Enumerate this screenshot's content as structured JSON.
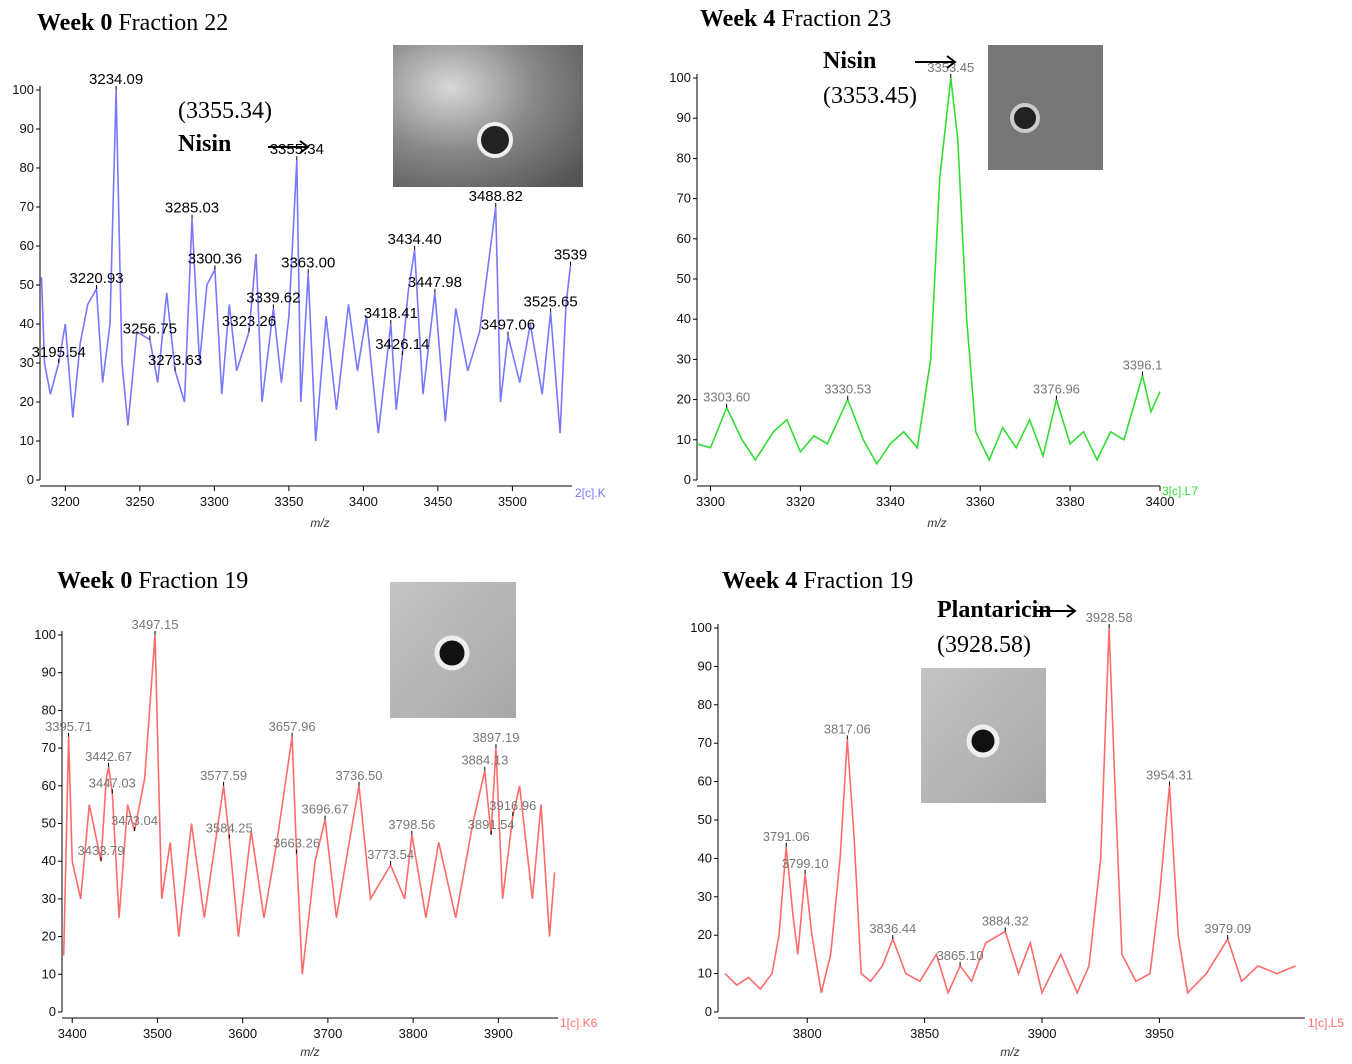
{
  "chart_data": [
    {
      "type": "line",
      "title_bold": "Week 0",
      "title": "Fraction 22",
      "x_label": "m/z",
      "channel_label": "2[c].K",
      "color": "#7878ff",
      "annotation_name": "Nisin",
      "annotation_value": "(3355.34)",
      "xlim": [
        3183,
        3540
      ],
      "xticks": [
        3200,
        3250,
        3300,
        3350,
        3400,
        3450,
        3500
      ],
      "ylim": [
        0,
        100
      ],
      "yticks": [
        0,
        10,
        20,
        30,
        40,
        50,
        60,
        70,
        80,
        90,
        100
      ],
      "x": [
        3184,
        3186,
        3190,
        3195.54,
        3200,
        3205,
        3210,
        3215,
        3220.93,
        3225,
        3230,
        3234.09,
        3238,
        3242,
        3248,
        3256.75,
        3262,
        3268,
        3273.63,
        3280,
        3285.03,
        3290,
        3295,
        3300.36,
        3305,
        3310,
        3315,
        3323.26,
        3328,
        3332,
        3339.62,
        3345,
        3350,
        3355.34,
        3358,
        3363,
        3368,
        3375,
        3382,
        3390,
        3396,
        3402,
        3410,
        3418.41,
        3422,
        3426.14,
        3430,
        3434.4,
        3440,
        3447.98,
        3455,
        3462,
        3470,
        3478,
        3488.82,
        3492,
        3497.06,
        3505,
        3512,
        3520,
        3525.65,
        3532,
        3536,
        3539
      ],
      "values": [
        52,
        30,
        22,
        30,
        40,
        16,
        35,
        45,
        49,
        25,
        40,
        100,
        30,
        14,
        38,
        36,
        25,
        48,
        28,
        20,
        67,
        30,
        50,
        54,
        22,
        45,
        28,
        38,
        58,
        20,
        44,
        25,
        42,
        82,
        20,
        53,
        10,
        42,
        18,
        45,
        28,
        42,
        12,
        40,
        18,
        32,
        48,
        59,
        22,
        48,
        15,
        44,
        28,
        38,
        70,
        20,
        37,
        25,
        40,
        22,
        43,
        12,
        45,
        55
      ],
      "peak_x": [
        3234.09,
        3220.93,
        3195.54,
        3256.75,
        3273.63,
        3285.03,
        3300.36,
        3323.26,
        3339.62,
        3355.34,
        3363.0,
        3418.41,
        3426.14,
        3434.4,
        3447.98,
        3488.82,
        3497.06,
        3525.65,
        3539
      ],
      "peak_y": [
        100,
        49,
        30,
        36,
        28,
        67,
        54,
        38,
        44,
        82,
        53,
        40,
        32,
        59,
        48,
        70,
        37,
        43,
        55
      ],
      "peak_labels": [
        "3234.09",
        "3220.93",
        "3195.54",
        "3256.75",
        "3273.63",
        "3285.03",
        "3300.36",
        "3323.26",
        "3339.62",
        "3355.34",
        "3363.00",
        "3418.41",
        "3426.14",
        "3434.40",
        "3447.98",
        "3488.82",
        "3497.06",
        "3525.65",
        "3539"
      ]
    },
    {
      "type": "line",
      "title_bold": "Week 4",
      "title": "Fraction 23",
      "x_label": "m/z",
      "channel_label": "3[c].L7",
      "color": "#33dd33",
      "annotation_name": "Nisin",
      "annotation_value": "(3353.45)",
      "xlim": [
        3297,
        3400
      ],
      "xticks": [
        3300,
        3320,
        3340,
        3360,
        3380,
        3400
      ],
      "ylim": [
        0,
        100
      ],
      "yticks": [
        0,
        10,
        20,
        30,
        40,
        50,
        60,
        70,
        80,
        90,
        100
      ],
      "x": [
        3297,
        3300,
        3303.6,
        3307,
        3310,
        3314,
        3317,
        3320,
        3323,
        3326,
        3330.53,
        3334,
        3337,
        3340,
        3343,
        3346,
        3349,
        3351,
        3353.45,
        3355,
        3357,
        3359,
        3362,
        3365,
        3368,
        3371,
        3374,
        3376.96,
        3380,
        3383,
        3386,
        3389,
        3392,
        3396.1,
        3398,
        3400
      ],
      "values": [
        9,
        8,
        18,
        10,
        5,
        12,
        15,
        7,
        11,
        9,
        20,
        10,
        4,
        9,
        12,
        8,
        30,
        75,
        100,
        85,
        40,
        12,
        5,
        13,
        8,
        15,
        6,
        20,
        9,
        12,
        5,
        12,
        10,
        26,
        17,
        22
      ],
      "peak_x": [
        3303.6,
        3330.53,
        3353.45,
        3376.96,
        3396.1
      ],
      "peak_y": [
        18,
        20,
        100,
        20,
        26
      ],
      "peak_labels": [
        "3303.60",
        "3330.53",
        "3353.45",
        "3376.96",
        "3396.1"
      ]
    },
    {
      "type": "line",
      "title_bold": "Week 0",
      "title": "Fraction 19",
      "x_label": "m/z",
      "channel_label": "1[c].K6",
      "color": "#ff6b6b",
      "xlim": [
        3388,
        3970
      ],
      "xticks": [
        3400,
        3500,
        3600,
        3700,
        3800,
        3900
      ],
      "ylim": [
        0,
        100
      ],
      "yticks": [
        0,
        10,
        20,
        30,
        40,
        50,
        60,
        70,
        80,
        90,
        100
      ],
      "x": [
        3390,
        3395.71,
        3400,
        3410,
        3420,
        3433.79,
        3440,
        3442.67,
        3447.03,
        3455,
        3465,
        3473.04,
        3485,
        3497.15,
        3505,
        3515,
        3525,
        3540,
        3555,
        3577.59,
        3584.25,
        3595,
        3610,
        3625,
        3640,
        3657.96,
        3663.26,
        3670,
        3685,
        3696.67,
        3710,
        3725,
        3736.5,
        3750,
        3773.54,
        3790,
        3798.56,
        3815,
        3830,
        3850,
        3870,
        3884.13,
        3891.54,
        3897.19,
        3905,
        3916.96,
        3925,
        3940,
        3950,
        3960,
        3966
      ],
      "values": [
        15,
        73,
        40,
        30,
        55,
        40,
        62,
        65,
        58,
        25,
        55,
        48,
        62,
        100,
        30,
        45,
        20,
        50,
        25,
        60,
        46,
        20,
        48,
        25,
        45,
        73,
        42,
        10,
        40,
        51,
        25,
        45,
        60,
        30,
        39,
        30,
        47,
        25,
        45,
        25,
        50,
        64,
        47,
        70,
        30,
        52,
        60,
        30,
        55,
        20,
        37
      ],
      "peak_x": [
        3395.71,
        3442.67,
        3447.03,
        3473.04,
        3433.79,
        3497.15,
        3577.59,
        3584.25,
        3657.96,
        3663.26,
        3696.67,
        3736.5,
        3798.56,
        3773.54,
        3897.19,
        3884.13,
        3916.96,
        3891.54
      ],
      "peak_y": [
        73,
        65,
        58,
        48,
        40,
        100,
        60,
        46,
        73,
        42,
        51,
        60,
        47,
        39,
        70,
        64,
        52,
        47
      ],
      "peak_labels": [
        "3395.71",
        "3442.67",
        "3447.03",
        "3473.04",
        "3433.79",
        "3497.15",
        "3577.59",
        "3584.25",
        "3657.96",
        "3663.26",
        "3696.67",
        "3736.50",
        "3798.56",
        "3773.54",
        "3897.19",
        "3884.13",
        "3916.96",
        "3891.54"
      ]
    },
    {
      "type": "line",
      "title_bold": "Week 4",
      "title": "Fraction 19",
      "x_label": "m/z",
      "channel_label": "1[c].L5",
      "color": "#ff6b6b",
      "annotation_name": "Plantaricin",
      "annotation_value": "(3928.58)",
      "xlim": [
        3762,
        4012
      ],
      "xticks": [
        3800,
        3850,
        3900,
        3950
      ],
      "ylim": [
        0,
        100
      ],
      "yticks": [
        0,
        10,
        20,
        30,
        40,
        50,
        60,
        70,
        80,
        90,
        100
      ],
      "x": [
        3765,
        3770,
        3775,
        3780,
        3785,
        3788,
        3791.06,
        3794,
        3796,
        3799.1,
        3802,
        3806,
        3810,
        3814,
        3817.06,
        3820,
        3823,
        3827,
        3832,
        3836.44,
        3842,
        3848,
        3855,
        3860,
        3865.1,
        3870,
        3876,
        3884.32,
        3890,
        3895,
        3900,
        3908,
        3915,
        3920,
        3925,
        3928.58,
        3931,
        3934,
        3940,
        3946,
        3950,
        3954.31,
        3958,
        3962,
        3970,
        3979.09,
        3985,
        3992,
        4000,
        4008
      ],
      "values": [
        10,
        7,
        9,
        6,
        10,
        20,
        43,
        25,
        15,
        36,
        20,
        5,
        15,
        40,
        71,
        45,
        10,
        8,
        12,
        19,
        10,
        8,
        15,
        5,
        12,
        8,
        18,
        21,
        10,
        18,
        5,
        15,
        5,
        12,
        40,
        100,
        60,
        15,
        8,
        10,
        30,
        59,
        20,
        5,
        10,
        19,
        8,
        12,
        10,
        12
      ],
      "peak_x": [
        3791.06,
        3799.1,
        3817.06,
        3836.44,
        3865.1,
        3884.32,
        3928.58,
        3954.31,
        3979.09
      ],
      "peak_y": [
        43,
        36,
        71,
        19,
        12,
        21,
        100,
        59,
        19
      ],
      "peak_labels": [
        "3791.06",
        "3799.10",
        "3817.06",
        "3836.44",
        "3865.10",
        "3884.32",
        "3928.58",
        "3954.31",
        "3979.09"
      ]
    }
  ]
}
